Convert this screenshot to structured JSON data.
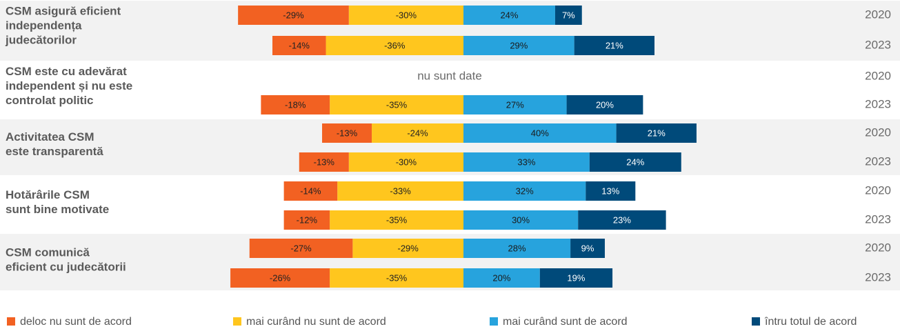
{
  "chart_data": {
    "type": "diverging-bar",
    "groups": [
      [
        "CSM asigură eficient",
        "independența",
        "judecătorilor"
      ],
      [
        "CSM este cu adevărat",
        "independent și nu este",
        "controlat politic"
      ],
      [
        "Activitatea CSM",
        "este transparentă"
      ],
      [
        "Hotărârile CSM",
        "sunt bine motivate"
      ],
      [
        "CSM comunică",
        "eficient cu judecătorii"
      ]
    ],
    "row_labels": [
      "2020",
      "2023",
      "2020",
      "2023",
      "2020",
      "2023",
      "2020",
      "2023",
      "2020",
      "2023"
    ],
    "no_data_label": "nu sunt date",
    "series": [
      {
        "name": "deloc nu sunt de acord",
        "color": "#f26122",
        "text_color": "#222222",
        "values": [
          -29,
          -14,
          null,
          -18,
          -13,
          -13,
          -14,
          -12,
          -27,
          -26
        ],
        "value_labels": [
          "-29%",
          "-14%",
          null,
          "-18%",
          "-13%",
          "-13%",
          "-14%",
          "-12%",
          "-27%",
          "-26%"
        ]
      },
      {
        "name": "mai curând nu sunt de acord",
        "color": "#ffc61e",
        "text_color": "#222222",
        "values": [
          -30,
          -36,
          null,
          -35,
          -24,
          -30,
          -33,
          -35,
          -29,
          -35
        ],
        "value_labels": [
          "-30%",
          "-36%",
          null,
          "-35%",
          "-24%",
          "-30%",
          "-33%",
          "-35%",
          "-29%",
          "-35%"
        ]
      },
      {
        "name": "mai curând sunt de acord",
        "color": "#27a3dd",
        "text_color": "#1a1a1a",
        "values": [
          24,
          29,
          null,
          27,
          40,
          33,
          32,
          30,
          28,
          20
        ],
        "value_labels": [
          "24%",
          "29%",
          null,
          "27%",
          "40%",
          "33%",
          "32%",
          "30%",
          "28%",
          "20%"
        ]
      },
      {
        "name": "întru totul de acord",
        "color": "#004a7a",
        "text_color": "#ffffff",
        "values": [
          7,
          21,
          null,
          20,
          21,
          24,
          13,
          23,
          9,
          19
        ],
        "value_labels": [
          "7%",
          "21%",
          null,
          "20%",
          "21%",
          "24%",
          "13%",
          "23%",
          "9%",
          "19%"
        ]
      }
    ]
  }
}
